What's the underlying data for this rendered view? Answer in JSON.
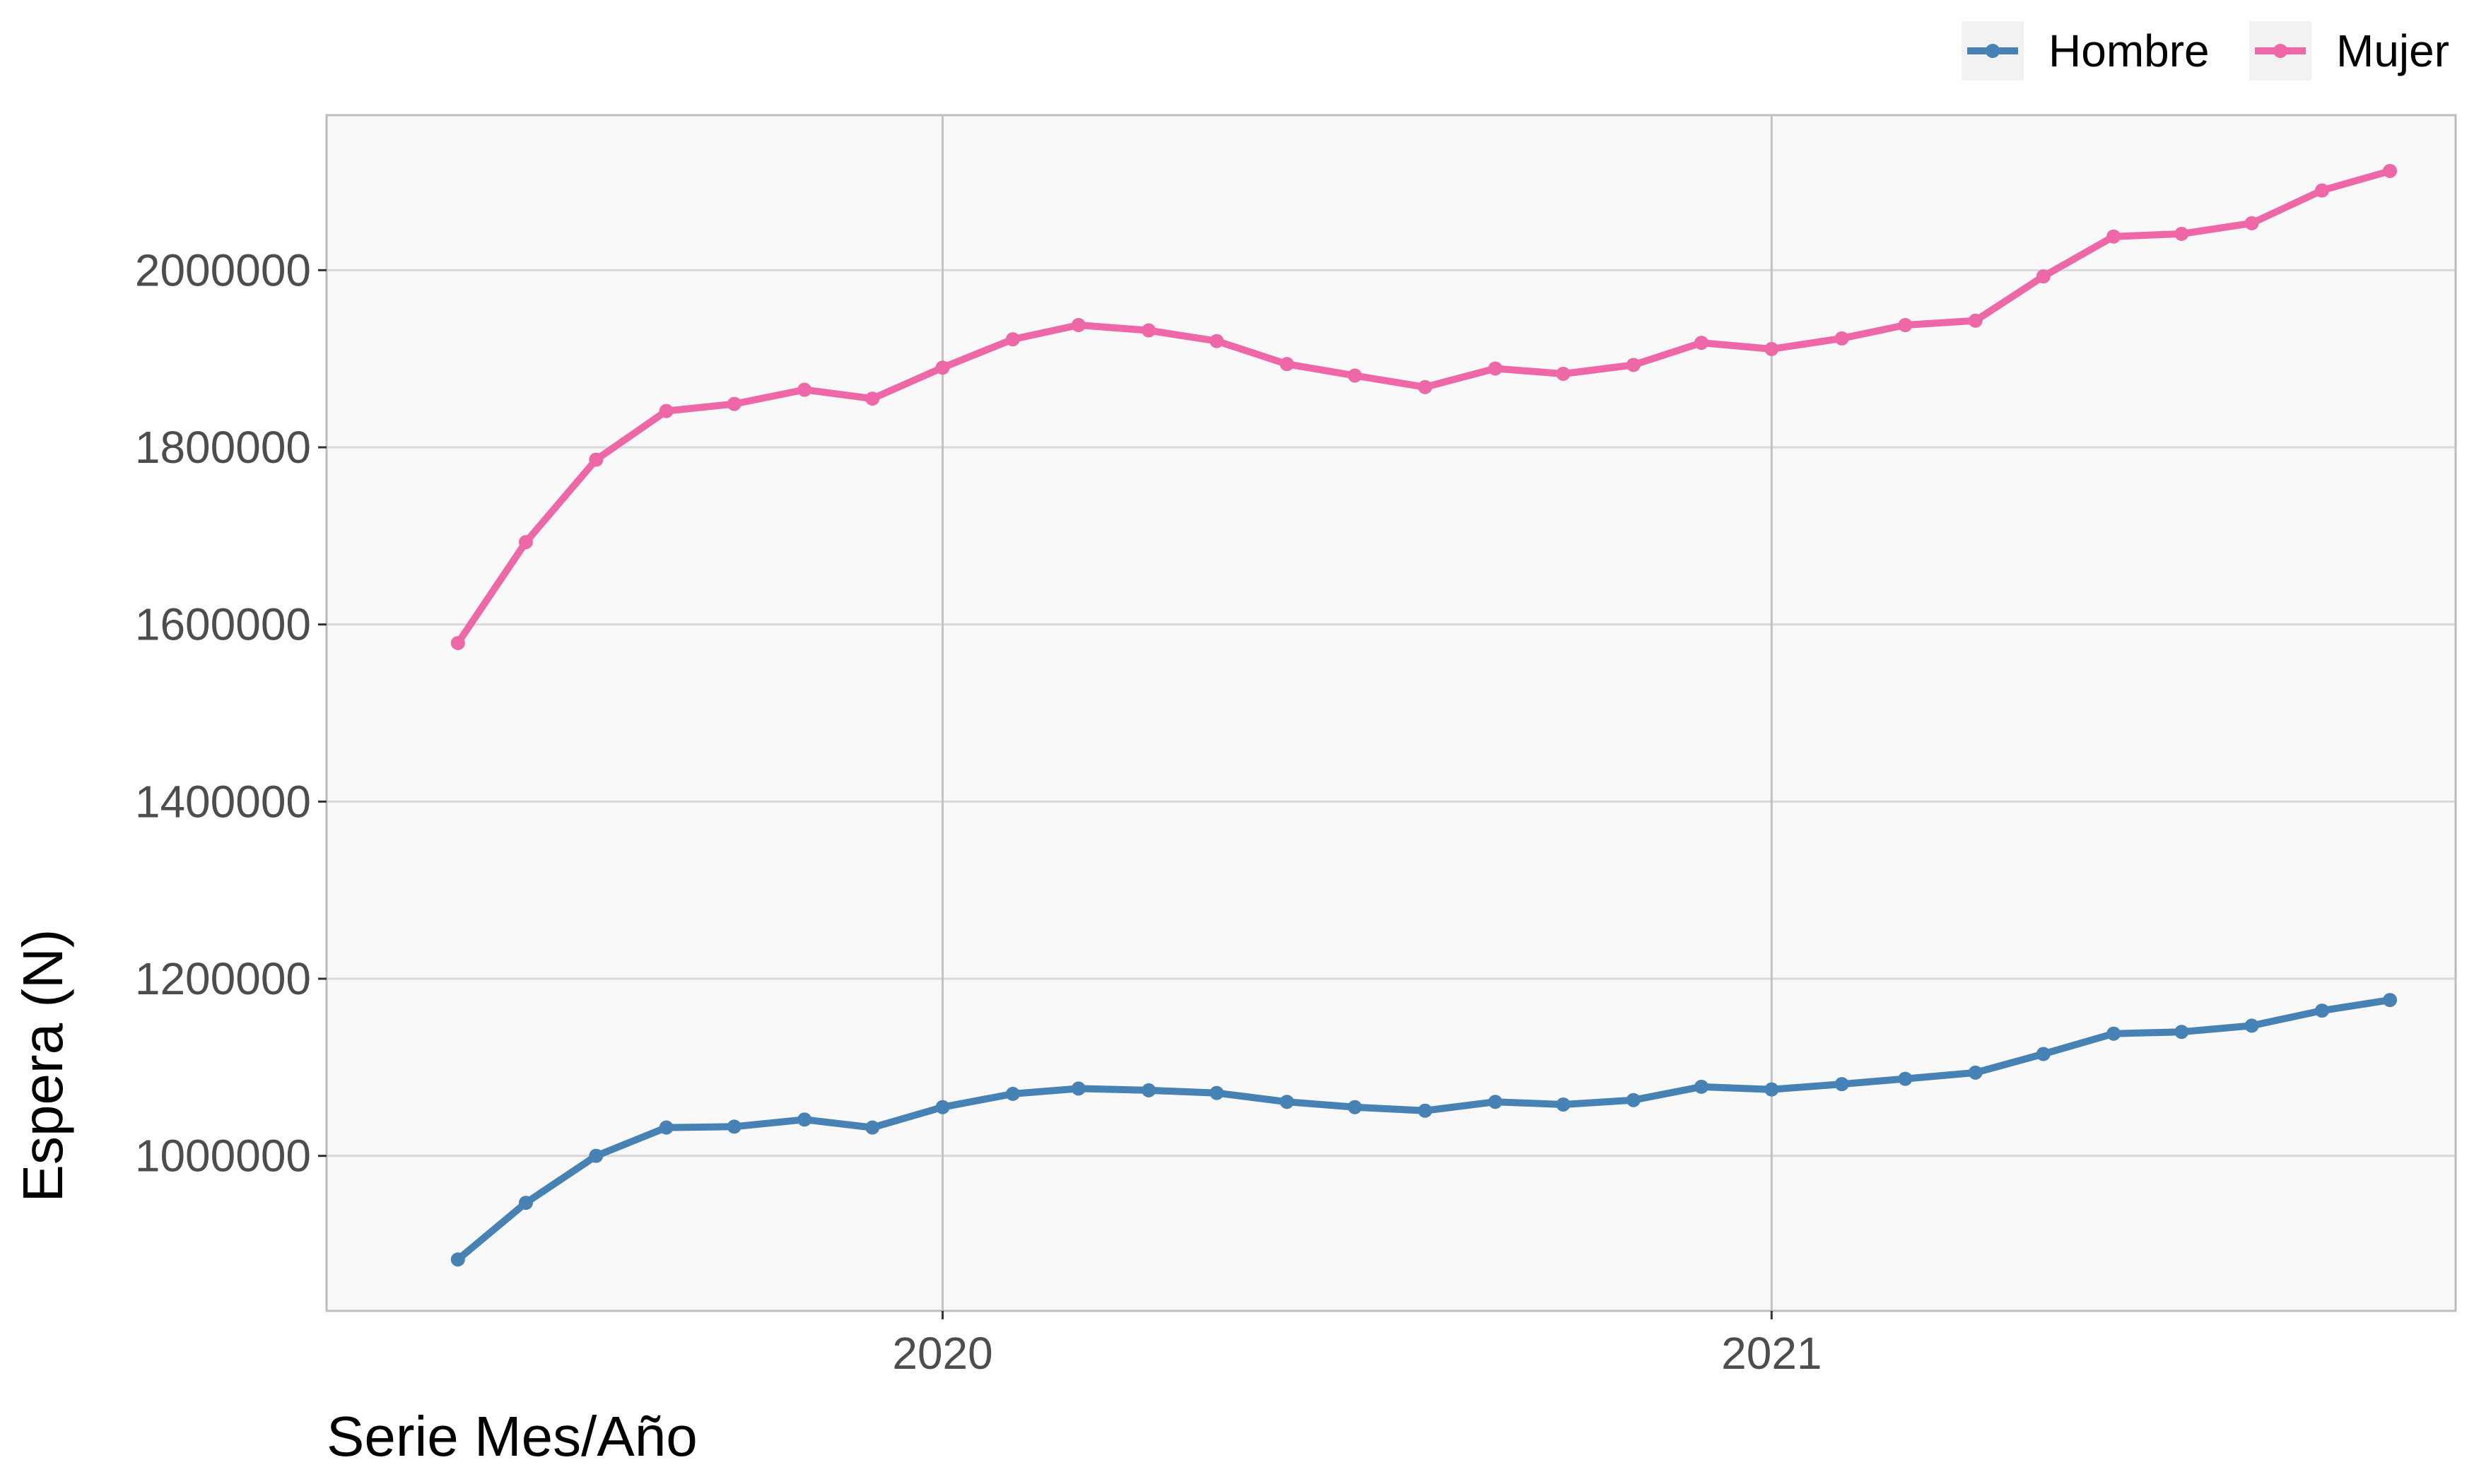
{
  "chart_data": {
    "type": "line",
    "title": "",
    "xlabel": "Serie Mes/Año",
    "ylabel": "Espera (N)",
    "x": [
      "2019-06",
      "2019-07",
      "2019-08",
      "2019-09",
      "2019-10",
      "2019-11",
      "2019-12",
      "2020-01",
      "2020-02",
      "2020-03",
      "2020-04",
      "2020-05",
      "2020-06",
      "2020-07",
      "2020-08",
      "2020-09",
      "2020-10",
      "2020-11",
      "2020-12",
      "2021-01",
      "2021-02",
      "2021-03",
      "2021-04",
      "2021-05",
      "2021-06",
      "2021-07",
      "2021-08",
      "2021-09",
      "2021-10"
    ],
    "x_ticks": [
      {
        "date": "2020-01",
        "label": "2020"
      },
      {
        "date": "2021-01",
        "label": "2021"
      }
    ],
    "y_ticks": [
      1000000,
      1200000,
      1400000,
      1600000,
      1800000,
      2000000
    ],
    "ylim": [
      825000,
      2175000
    ],
    "xlim": [
      "2019-04-18",
      "2021-11-13"
    ],
    "grid": true,
    "legend_position": "top-right",
    "series": [
      {
        "name": "Hombre",
        "color": "#4682B4",
        "values": [
          883000,
          947000,
          1000000,
          1032000,
          1033000,
          1041000,
          1032000,
          1055000,
          1070000,
          1076000,
          1074000,
          1071000,
          1061000,
          1055000,
          1051000,
          1061000,
          1058000,
          1063000,
          1078000,
          1075000,
          1081000,
          1087000,
          1094000,
          1115000,
          1138000,
          1140000,
          1147000,
          1164000,
          1176000
        ]
      },
      {
        "name": "Mujer",
        "color": "#EE68A8",
        "values": [
          1579000,
          1693000,
          1786000,
          1841000,
          1849000,
          1865000,
          1855000,
          1890000,
          1922000,
          1938000,
          1932000,
          1920000,
          1894000,
          1881000,
          1868000,
          1889000,
          1883000,
          1893000,
          1918000,
          1911000,
          1923000,
          1938000,
          1943000,
          1993000,
          2038000,
          2041000,
          2053000,
          2090000,
          2112000
        ]
      }
    ]
  }
}
